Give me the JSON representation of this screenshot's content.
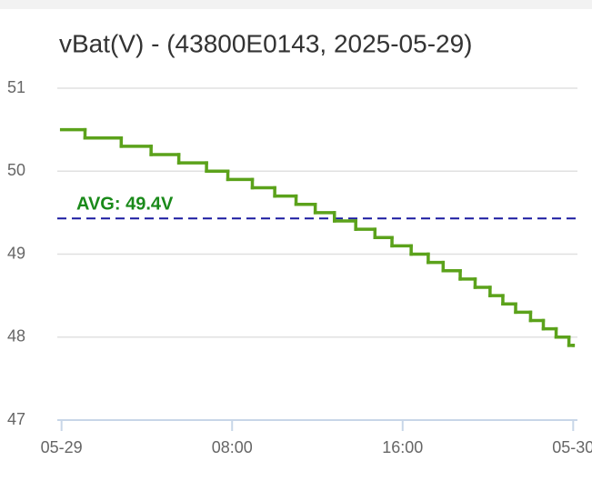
{
  "chart_data": {
    "type": "line",
    "title": "vBat(V) - (43800E0143, 2025-05-29)",
    "step": "post",
    "x": [
      0,
      1.1,
      2.8,
      4.2,
      5.5,
      6.8,
      7.8,
      8.95,
      10.0,
      11.0,
      11.9,
      12.8,
      13.8,
      14.7,
      15.5,
      16.4,
      17.2,
      17.9,
      18.7,
      19.4,
      20.1,
      20.7,
      21.3,
      22.0,
      22.6,
      23.2,
      23.8,
      24.0
    ],
    "series": [
      {
        "name": "vBat(V)",
        "color": "#5ba21b",
        "values": [
          50.5,
          50.4,
          50.3,
          50.2,
          50.1,
          50.0,
          49.9,
          49.8,
          49.7,
          49.6,
          49.5,
          49.4,
          49.3,
          49.2,
          49.1,
          49.0,
          48.9,
          48.8,
          48.7,
          48.6,
          48.5,
          48.4,
          48.3,
          48.2,
          48.1,
          48.0,
          47.9,
          47.9
        ]
      }
    ],
    "avg": {
      "value": 49.43,
      "label": "AVG: 49.4V",
      "color": "#1a1aa0",
      "label_color": "#1a8a1a"
    },
    "xlim": [
      -0.2,
      24.2
    ],
    "xticks": [
      {
        "value": 0,
        "label": "05-29"
      },
      {
        "value": 8,
        "label": "08:00"
      },
      {
        "value": 16,
        "label": "16:00"
      },
      {
        "value": 24,
        "label": "05-30"
      }
    ],
    "ylim": [
      47,
      51
    ],
    "yticks": [
      47,
      48,
      49,
      50,
      51
    ],
    "grid": true
  }
}
